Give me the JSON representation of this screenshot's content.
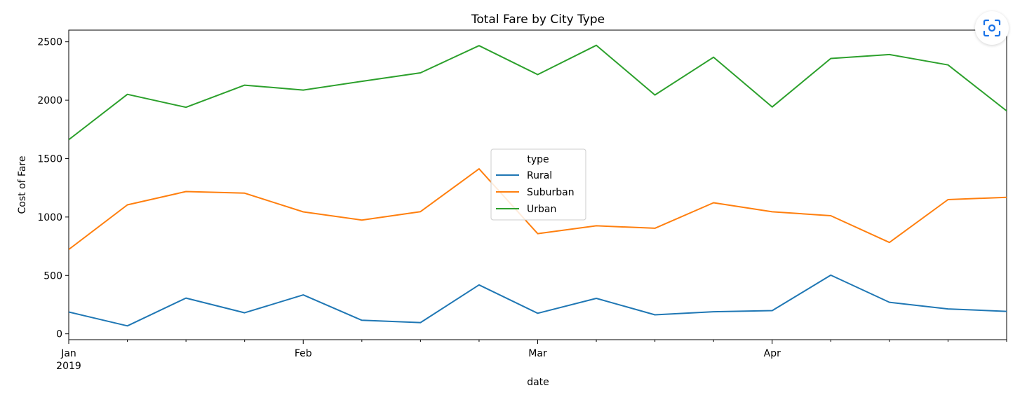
{
  "chart_data": {
    "type": "line",
    "title": "Total Fare by City Type",
    "xlabel": "date",
    "ylabel": "Cost of Fare",
    "x": [
      "2019-01-06",
      "2019-01-13",
      "2019-01-20",
      "2019-01-27",
      "2019-02-03",
      "2019-02-10",
      "2019-02-17",
      "2019-02-24",
      "2019-03-03",
      "2019-03-10",
      "2019-03-17",
      "2019-03-24",
      "2019-03-31",
      "2019-04-07",
      "2019-04-14",
      "2019-04-21",
      "2019-04-28"
    ],
    "xlim": [
      "2019-01-06",
      "2019-04-28"
    ],
    "ylim": [
      -50,
      2600
    ],
    "yticks": [
      0,
      500,
      1000,
      1500,
      2000,
      2500
    ],
    "month_ticks": [
      {
        "date": "2019-01-06",
        "label": "Jan",
        "sublabel": "2019"
      },
      {
        "date": "2019-02-03",
        "label": "Feb",
        "sublabel": ""
      },
      {
        "date": "2019-03-03",
        "label": "Mar",
        "sublabel": ""
      },
      {
        "date": "2019-03-31",
        "label": "Apr",
        "sublabel": ""
      }
    ],
    "legend": {
      "title": "type",
      "placement": "center"
    },
    "grid": false,
    "series": [
      {
        "name": "Rural",
        "color": "#1f77b4",
        "values": [
          187,
          68,
          306,
          180,
          333,
          116,
          96,
          419,
          176,
          304,
          163,
          189,
          199,
          502,
          270,
          213,
          192
        ]
      },
      {
        "name": "Suburban",
        "color": "#ff7f0e",
        "values": [
          722,
          1104,
          1218,
          1204,
          1044,
          974,
          1046,
          1412,
          858,
          925,
          904,
          1122,
          1045,
          1011,
          782,
          1149,
          1169
        ]
      },
      {
        "name": "Urban",
        "color": "#2ca02c",
        "values": [
          1662,
          2050,
          1939,
          2129,
          2087,
          2162,
          2234,
          2467,
          2219,
          2470,
          2045,
          2368,
          1942,
          2357,
          2391,
          2302,
          1908
        ]
      }
    ]
  },
  "ui": {
    "zoom_icon": "focus-scan-icon"
  }
}
